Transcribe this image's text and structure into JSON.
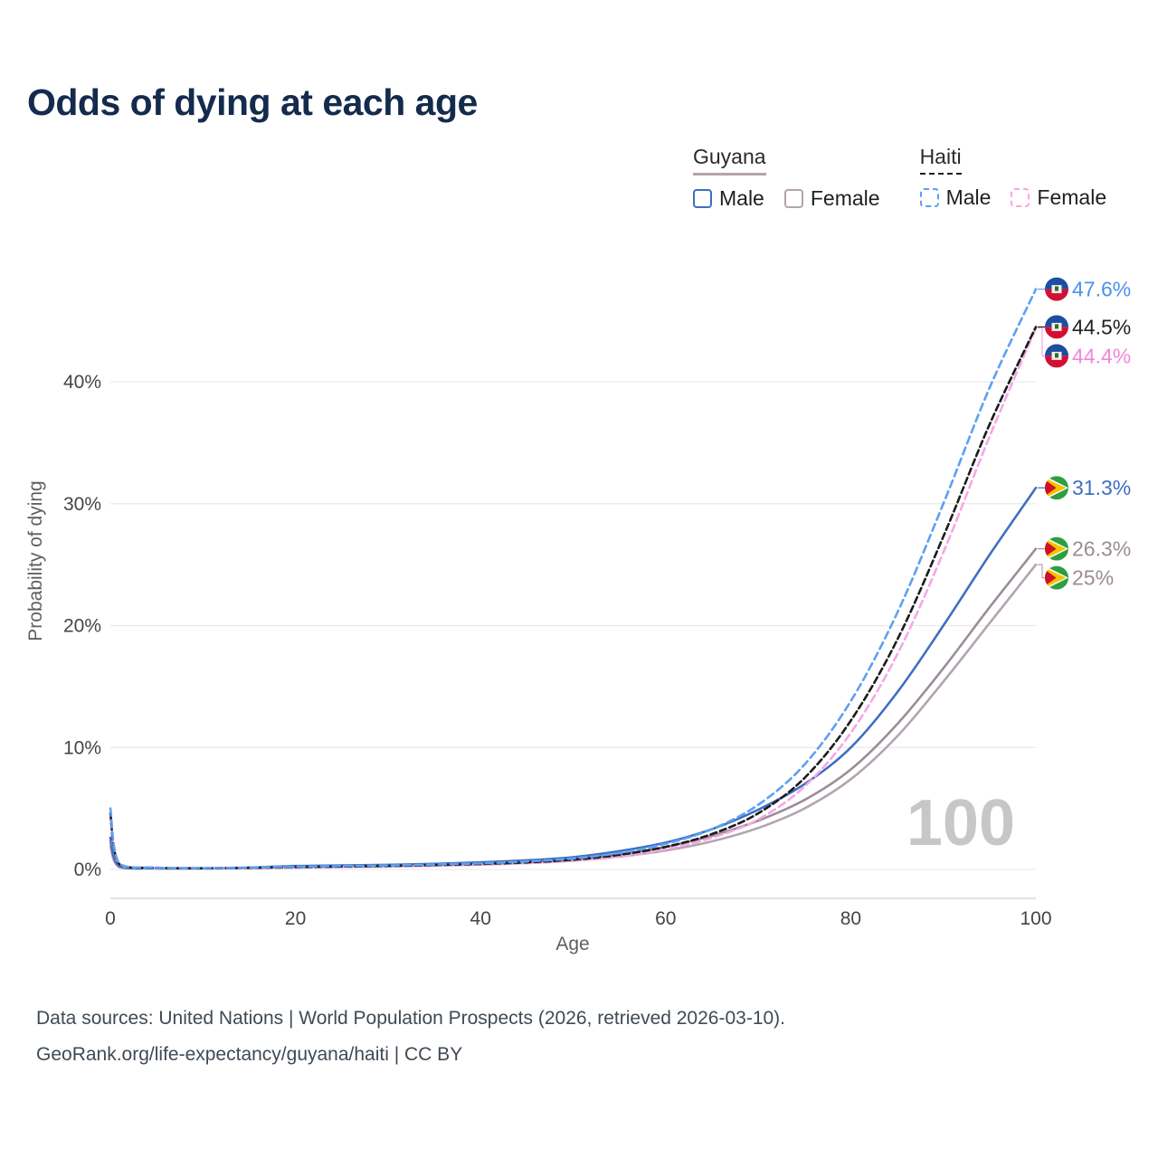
{
  "title": "Odds of dying at each age",
  "watermark": "100",
  "legend": {
    "groups": [
      {
        "name": "Guyana",
        "underline": {
          "color": "#b3a3af",
          "dashed": false
        },
        "items": [
          {
            "label": "Male",
            "color": "#3d6fc1",
            "dashed": false
          },
          {
            "label": "Female",
            "color": "#b3a3af",
            "dashed": false
          }
        ]
      },
      {
        "name": "Haiti",
        "underline": {
          "color": "#1c1c1c",
          "dashed": true
        },
        "items": [
          {
            "label": "Male",
            "color": "#5da0f2",
            "dashed": true
          },
          {
            "label": "Female",
            "color": "#f7a6e6",
            "dashed": true
          }
        ]
      }
    ]
  },
  "chart_data": {
    "type": "line",
    "title": "Odds of dying at each age",
    "xlabel": "Age",
    "ylabel": "Probability of dying",
    "xlim": [
      0,
      100
    ],
    "ylim": [
      0,
      50
    ],
    "x_ticks": [
      0,
      20,
      40,
      60,
      80,
      100
    ],
    "y_ticks": [
      {
        "value": 0,
        "label": "0%"
      },
      {
        "value": 10,
        "label": "10%"
      },
      {
        "value": 20,
        "label": "20%"
      },
      {
        "value": 30,
        "label": "30%"
      },
      {
        "value": 40,
        "label": "40%"
      }
    ],
    "ages": [
      0,
      1,
      5,
      10,
      15,
      20,
      25,
      30,
      35,
      40,
      45,
      50,
      55,
      60,
      65,
      70,
      75,
      80,
      85,
      90,
      95,
      100
    ],
    "series": [
      {
        "id": "guyana-female",
        "name": "Guyana Female",
        "country": "guyana",
        "sex": "female",
        "color": "#b3a4b0",
        "dashed": false,
        "dash": "",
        "values": [
          1.9,
          0.18,
          0.08,
          0.07,
          0.1,
          0.16,
          0.2,
          0.24,
          0.3,
          0.39,
          0.52,
          0.72,
          1.05,
          1.55,
          2.3,
          3.4,
          5.0,
          7.4,
          10.9,
          15.4,
          20.2,
          25.0
        ],
        "end_label": {
          "text": "25%",
          "color": "#9b8b97"
        }
      },
      {
        "id": "guyana-both",
        "name": "Guyana",
        "country": "guyana",
        "sex": "both",
        "color": "#9c8d99",
        "dashed": false,
        "dash": "",
        "values": [
          2.3,
          0.22,
          0.09,
          0.08,
          0.13,
          0.23,
          0.27,
          0.31,
          0.38,
          0.48,
          0.62,
          0.85,
          1.25,
          1.85,
          2.75,
          4.0,
          5.7,
          8.2,
          11.9,
          16.5,
          21.5,
          26.3
        ],
        "end_label": {
          "text": "26.3%",
          "color": "#9b8b97"
        }
      },
      {
        "id": "guyana-male",
        "name": "Guyana Male",
        "country": "guyana",
        "sex": "male",
        "color": "#3d6fc1",
        "dashed": false,
        "dash": "",
        "values": [
          2.6,
          0.25,
          0.1,
          0.09,
          0.15,
          0.28,
          0.33,
          0.38,
          0.46,
          0.58,
          0.75,
          1.0,
          1.5,
          2.2,
          3.3,
          4.9,
          7.0,
          10.0,
          14.5,
          20.0,
          25.8,
          31.3
        ],
        "end_label": {
          "text": "31.3%",
          "color": "#3d6fc1"
        }
      },
      {
        "id": "haiti-female",
        "name": "Haiti Female",
        "country": "haiti",
        "sex": "female",
        "color": "#f7a6e6",
        "dashed": true,
        "dash": "8 5",
        "values": [
          4.2,
          0.36,
          0.12,
          0.09,
          0.11,
          0.16,
          0.2,
          0.25,
          0.31,
          0.4,
          0.52,
          0.72,
          1.05,
          1.65,
          2.6,
          4.1,
          6.8,
          11.2,
          17.6,
          26.0,
          35.5,
          44.4
        ],
        "end_label": {
          "text": "44.4%",
          "color": "#f584da"
        }
      },
      {
        "id": "haiti-both",
        "name": "Haiti",
        "country": "haiti",
        "sex": "both",
        "color": "#1c1c1c",
        "dashed": true,
        "dash": "7 4",
        "values": [
          4.6,
          0.4,
          0.13,
          0.1,
          0.13,
          0.19,
          0.24,
          0.29,
          0.36,
          0.45,
          0.58,
          0.8,
          1.2,
          1.85,
          2.9,
          4.6,
          7.5,
          12.2,
          18.8,
          27.3,
          36.5,
          44.5
        ],
        "end_label": {
          "text": "44.5%",
          "color": "#222222"
        }
      },
      {
        "id": "haiti-male",
        "name": "Haiti Male",
        "country": "haiti",
        "sex": "male",
        "color": "#5da0f2",
        "dashed": true,
        "dash": "8 5",
        "values": [
          5.0,
          0.45,
          0.14,
          0.11,
          0.15,
          0.22,
          0.28,
          0.33,
          0.4,
          0.5,
          0.65,
          0.9,
          1.35,
          2.1,
          3.3,
          5.3,
          8.6,
          13.8,
          21.0,
          30.0,
          39.5,
          47.6
        ],
        "end_label": {
          "text": "47.6%",
          "color": "#4a90ea"
        }
      }
    ]
  },
  "flags": {
    "haiti": {
      "top": "#1c4fa0",
      "bottom": "#d21034",
      "panel": "#f3efe2",
      "emblem": "#2e6b33"
    },
    "guyana": {
      "field": "#2f9e41",
      "arrow": "#f5c400",
      "inner": "#cf1126",
      "fimbriation": "#ffffff"
    }
  },
  "footer": {
    "sources": "Data sources: United Nations | World Population Prospects (2026, retrieved 2026-03-10).",
    "link": "GeoRank.org/life-expectancy/guyana/haiti | CC BY"
  }
}
